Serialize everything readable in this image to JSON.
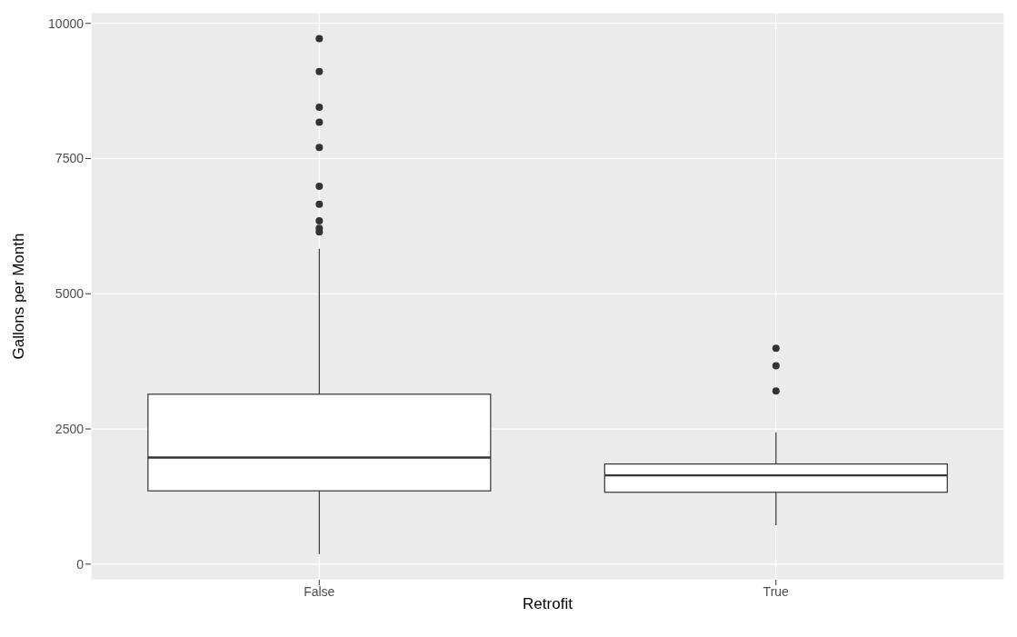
{
  "chart_data": {
    "type": "box",
    "xlabel": "Retrofit",
    "ylabel": "Gallons per Month",
    "categories": [
      "False",
      "True"
    ],
    "boxes": [
      {
        "low": 186,
        "q1": 1355,
        "median": 1971,
        "q3": 3142,
        "high": 5832,
        "outliers": [
          9720,
          9111,
          8451,
          8170,
          7705,
          6986,
          6657,
          6349,
          6212,
          6141
        ]
      },
      {
        "low": 721,
        "q1": 1329,
        "median": 1641,
        "q3": 1852,
        "high": 2437,
        "outliers": [
          3992,
          3669,
          3203
        ]
      }
    ],
    "ylim": [
      -289,
      10197
    ],
    "yticks": [
      0,
      2500,
      5000,
      7500,
      10000
    ],
    "grid": true
  }
}
